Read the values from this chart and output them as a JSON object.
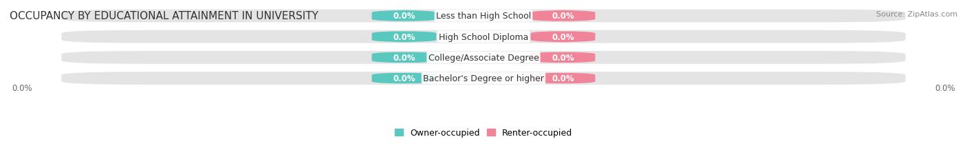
{
  "title": "OCCUPANCY BY EDUCATIONAL ATTAINMENT IN UNIVERSITY",
  "source": "Source: ZipAtlas.com",
  "categories": [
    "Less than High School",
    "High School Diploma",
    "College/Associate Degree",
    "Bachelor's Degree or higher"
  ],
  "owner_values": [
    0.0,
    0.0,
    0.0,
    0.0
  ],
  "renter_values": [
    0.0,
    0.0,
    0.0,
    0.0
  ],
  "owner_color": "#5bc8c0",
  "renter_color": "#f0859a",
  "bar_bg_color": "#e4e4e4",
  "bar_height": 0.62,
  "legend_owner": "Owner-occupied",
  "legend_renter": "Renter-occupied",
  "title_fontsize": 11,
  "label_fontsize": 9,
  "tick_fontsize": 8.5,
  "source_fontsize": 8,
  "value_label_fontsize": 8.5
}
